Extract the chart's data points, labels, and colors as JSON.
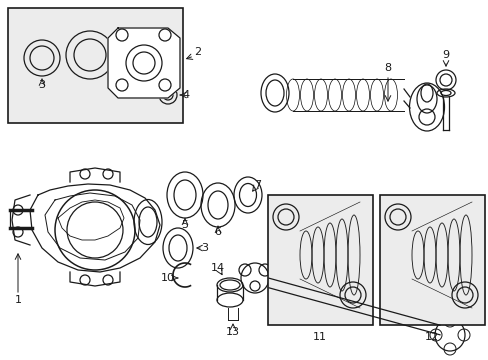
{
  "background_color": "#ffffff",
  "line_color": "#1a1a1a",
  "box_bg": "#e8e8e8",
  "fig_w": 4.89,
  "fig_h": 3.6,
  "dpi": 100
}
